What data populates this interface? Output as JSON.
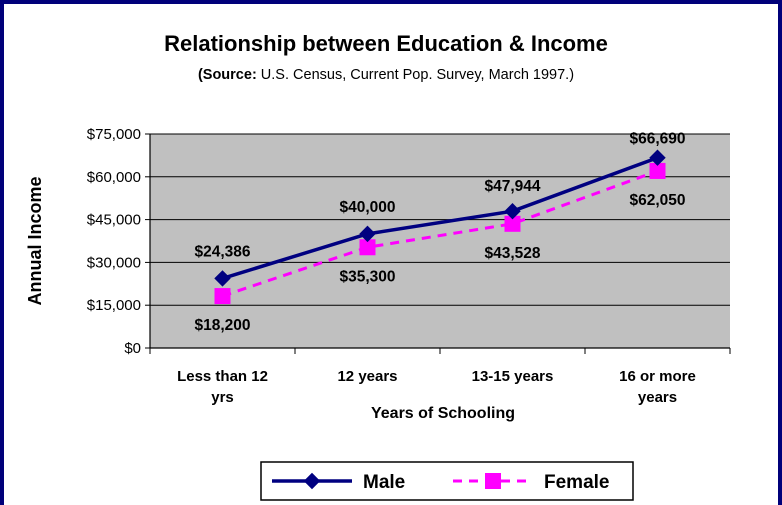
{
  "chart_data": {
    "type": "line",
    "title": "Relationship between Education & Income",
    "subtitle_bold": "(Source:",
    "subtitle_rest": " U.S. Census, Current Pop. Survey, March 1997.)",
    "xlabel": "Years of Schooling",
    "ylabel": "Annual Income",
    "categories": [
      [
        "Less than 12",
        "yrs"
      ],
      [
        "12 years"
      ],
      [
        "13-15 years"
      ],
      [
        "16 or more",
        "years"
      ]
    ],
    "yticks": [
      "$0",
      "$15,000",
      "$30,000",
      "$45,000",
      "$60,000",
      "$75,000"
    ],
    "ylim": [
      0,
      75000
    ],
    "grid": true,
    "legend_position": "bottom",
    "series": [
      {
        "name": "Male",
        "values": [
          24386,
          40000,
          47944,
          66690
        ],
        "labels": [
          "$24,386",
          "$40,000",
          "$47,944",
          "$66,690"
        ],
        "color": "#000080",
        "marker": "diamond",
        "line_style": "solid"
      },
      {
        "name": "Female",
        "values": [
          18200,
          35300,
          43528,
          62050
        ],
        "labels": [
          "$18,200",
          "$35,300",
          "$43,528",
          "$62,050"
        ],
        "color": "#ff00ff",
        "marker": "square",
        "line_style": "dashed"
      }
    ],
    "colors": {
      "plot_background": "#c0c0c0",
      "frame_border": "#00007a"
    }
  }
}
